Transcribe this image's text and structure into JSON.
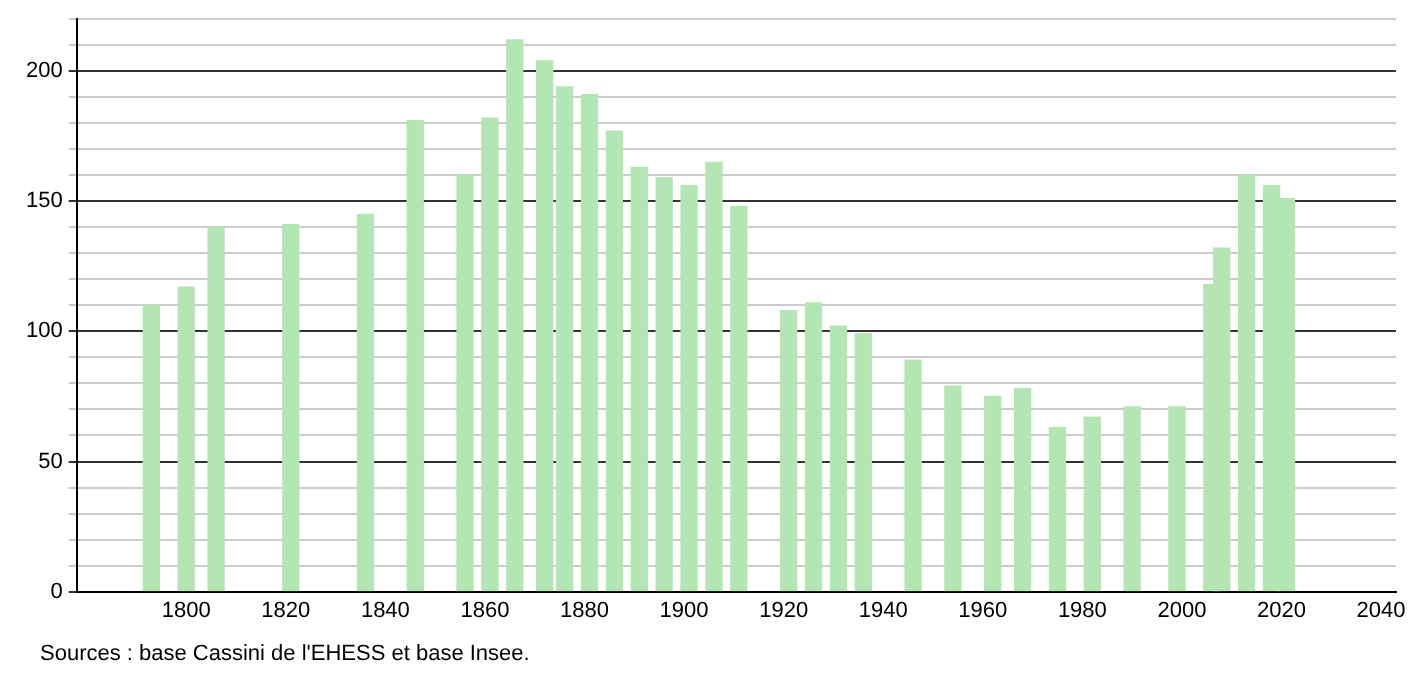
{
  "chart_data": {
    "type": "bar",
    "x": [
      1793,
      1800,
      1806,
      1821,
      1836,
      1846,
      1856,
      1861,
      1866,
      1872,
      1876,
      1881,
      1886,
      1891,
      1896,
      1901,
      1906,
      1911,
      1921,
      1926,
      1931,
      1936,
      1946,
      1954,
      1962,
      1968,
      1975,
      1982,
      1990,
      1999,
      2006,
      2008,
      2013,
      2018,
      2021
    ],
    "values": [
      110,
      117,
      140,
      141,
      145,
      181,
      160,
      182,
      212,
      204,
      194,
      191,
      177,
      163,
      159,
      156,
      165,
      148,
      108,
      111,
      102,
      99,
      89,
      79,
      75,
      78,
      63,
      67,
      71,
      71,
      118,
      132,
      160,
      156,
      151
    ],
    "color": "#b3e6b3",
    "xlim": [
      1778,
      2043
    ],
    "xticks": [
      1800,
      1820,
      1840,
      1860,
      1880,
      1900,
      1920,
      1940,
      1960,
      1980,
      2000,
      2020,
      2040
    ],
    "ylim": [
      0,
      220
    ],
    "yticks": [
      0,
      {
        "value": 10,
        "label": null
      },
      {
        "value": 20,
        "label": null
      },
      {
        "value": 30,
        "label": null
      },
      {
        "value": 40,
        "label": null
      },
      50,
      {
        "value": 60,
        "label": null
      },
      {
        "value": 70,
        "label": null
      },
      {
        "value": 80,
        "label": null
      },
      {
        "value": 90,
        "label": null
      },
      100,
      {
        "value": 110,
        "label": null
      },
      {
        "value": 120,
        "label": null
      },
      {
        "value": 130,
        "label": null
      },
      {
        "value": 140,
        "label": null
      },
      150,
      {
        "value": 160,
        "label": null
      },
      {
        "value": 170,
        "label": null
      },
      {
        "value": 180,
        "label": null
      },
      {
        "value": 190,
        "label": null
      },
      200,
      {
        "value": 210,
        "label": null
      },
      {
        "value": 220,
        "label": null
      }
    ],
    "grid": "y",
    "legend": false,
    "annotations": [
      "Sources : base Cassini de l'EHESS et base Insee."
    ]
  }
}
